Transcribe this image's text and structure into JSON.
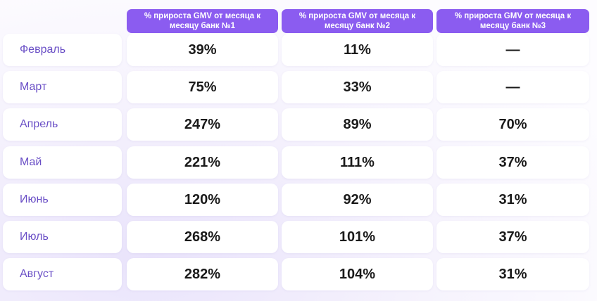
{
  "chart_data": {
    "type": "table",
    "columns": [
      "% прироста GMV от месяца к месяцу банк №1",
      "% прироста GMV от месяца к месяцу банк №2",
      "% прироста GMV от месяца к месяцу банк №3"
    ],
    "rows": [
      {
        "label": "Февраль",
        "values": [
          "39%",
          "11%",
          "—"
        ]
      },
      {
        "label": "Март",
        "values": [
          "75%",
          "33%",
          "—"
        ]
      },
      {
        "label": "Апрель",
        "values": [
          "247%",
          "89%",
          "70%"
        ]
      },
      {
        "label": "Май",
        "values": [
          "221%",
          "111%",
          "37%"
        ]
      },
      {
        "label": "Июнь",
        "values": [
          "120%",
          "92%",
          "31%"
        ]
      },
      {
        "label": "Июль",
        "values": [
          "268%",
          "101%",
          "37%"
        ]
      },
      {
        "label": "Август",
        "values": [
          "282%",
          "104%",
          "31%"
        ]
      }
    ]
  },
  "colors": {
    "header_bg": "#8b5cf0",
    "month_text": "#6a4fc6",
    "cell_bg": "#ffffff"
  }
}
